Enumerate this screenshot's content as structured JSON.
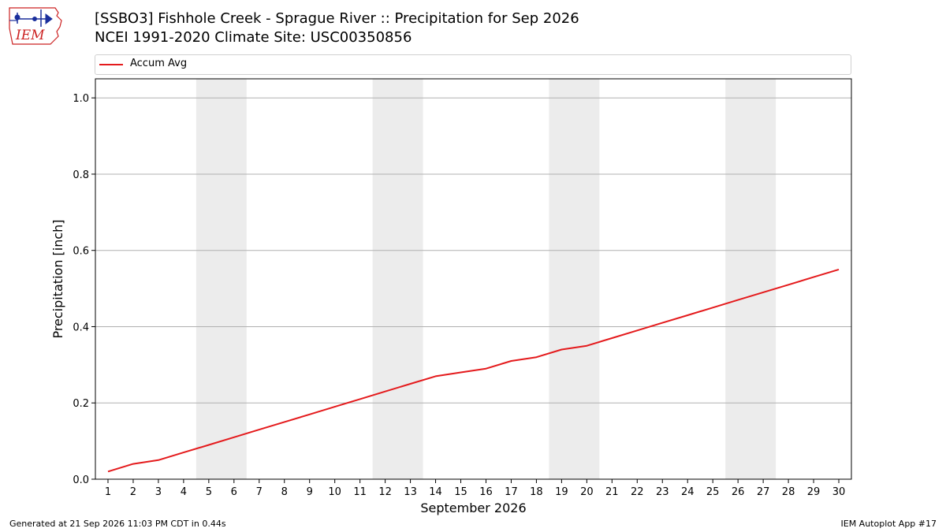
{
  "header": {
    "title_line1": "[SSBO3] Fishhole Creek - Sprague River :: Precipitation for Sep 2026",
    "title_line2": "NCEI 1991-2020 Climate Site: USC00350856",
    "logo_text": "IEM"
  },
  "footer": {
    "left": "Generated at 21 Sep 2026 11:03 PM CDT in 0.44s",
    "right": "IEM Autoplot App #17"
  },
  "colors": {
    "series": "#e41a1c",
    "weekend_band": "#ececec",
    "grid": "#b0b0b0",
    "logo_red": "#cc2222",
    "logo_blue": "#1a2f9c"
  },
  "chart_data": {
    "type": "line",
    "title": "[SSBO3] Fishhole Creek - Sprague River :: Precipitation for Sep 2026",
    "subtitle": "NCEI 1991-2020 Climate Site: USC00350856",
    "xlabel": "September 2026",
    "ylabel": "Precipitation [inch]",
    "ylim": [
      0,
      1.05
    ],
    "xlim": [
      0.5,
      30.5
    ],
    "yticks": [
      "0.0",
      "0.2",
      "0.4",
      "0.6",
      "0.8",
      "1.0"
    ],
    "x": [
      1,
      2,
      3,
      4,
      5,
      6,
      7,
      8,
      9,
      10,
      11,
      12,
      13,
      14,
      15,
      16,
      17,
      18,
      19,
      20,
      21,
      22,
      23,
      24,
      25,
      26,
      27,
      28,
      29,
      30
    ],
    "series": [
      {
        "name": "Accum Avg",
        "values": [
          0.02,
          0.04,
          0.05,
          0.07,
          0.09,
          0.11,
          0.13,
          0.15,
          0.17,
          0.19,
          0.21,
          0.23,
          0.25,
          0.27,
          0.28,
          0.29,
          0.31,
          0.32,
          0.34,
          0.35,
          0.37,
          0.39,
          0.41,
          0.43,
          0.45,
          0.47,
          0.49,
          0.51,
          0.53,
          0.55
        ]
      }
    ],
    "weekend_bands": [
      [
        4.5,
        6.5
      ],
      [
        11.5,
        13.5
      ],
      [
        18.5,
        20.5
      ],
      [
        25.5,
        27.5
      ]
    ],
    "grid": "horizontal",
    "legend_position": "top"
  }
}
